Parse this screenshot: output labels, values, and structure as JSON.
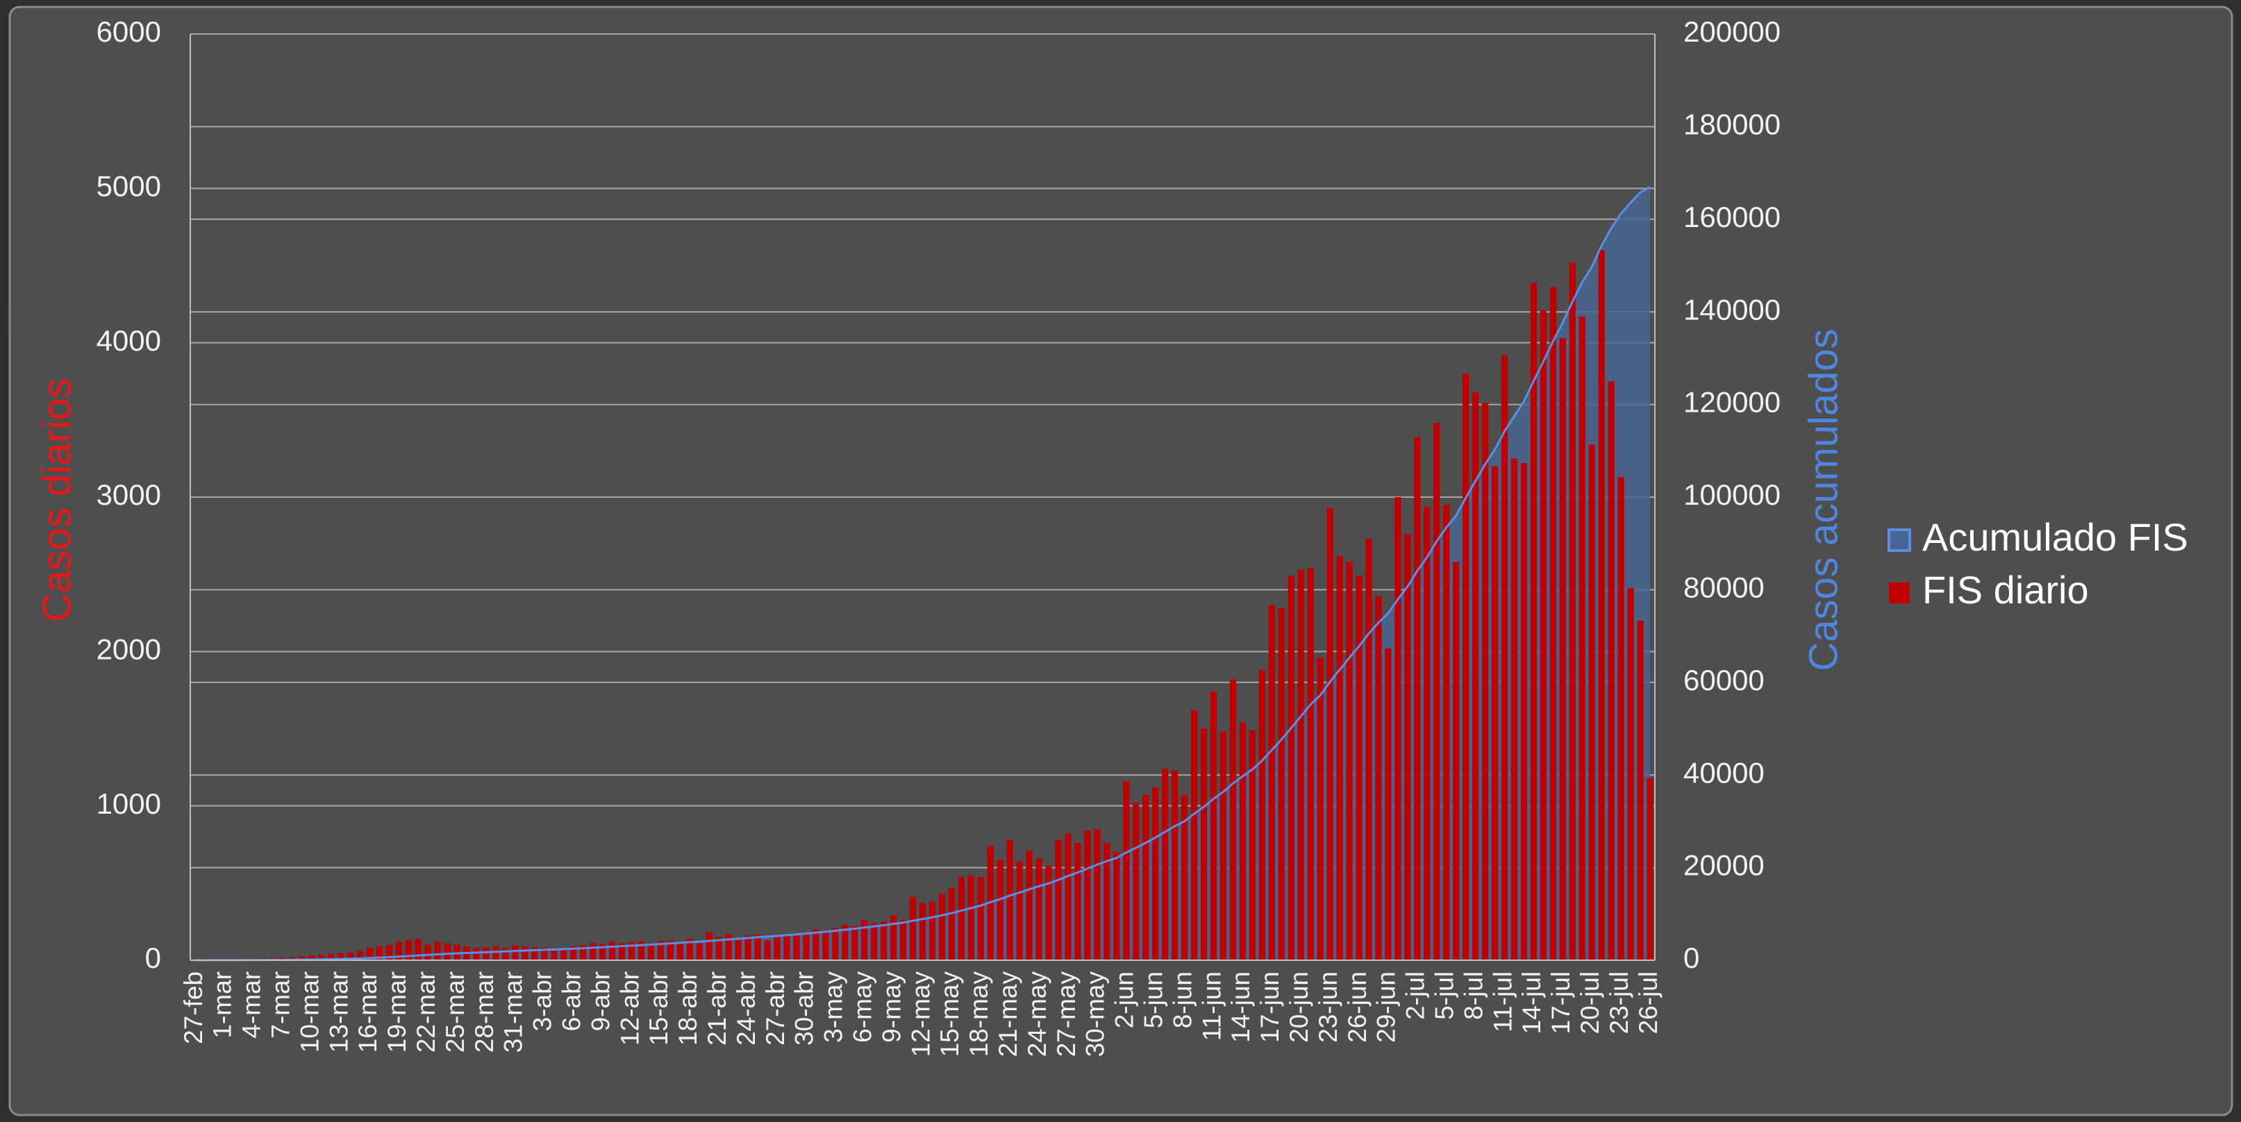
{
  "chart_data": {
    "type": "bar",
    "y_label": "Casos diarios",
    "y2_label": "Casos acumulados",
    "categories": [
      "27-feb",
      null,
      null,
      "1-mar",
      null,
      null,
      "4-mar",
      null,
      null,
      "7-mar",
      null,
      null,
      "10-mar",
      null,
      null,
      "13-mar",
      null,
      null,
      "16-mar",
      null,
      null,
      "19-mar",
      null,
      null,
      "22-mar",
      null,
      null,
      "25-mar",
      null,
      null,
      "28-mar",
      null,
      null,
      "31-mar",
      null,
      null,
      "3-abr",
      null,
      null,
      "6-abr",
      null,
      null,
      "9-abr",
      null,
      null,
      "12-abr",
      null,
      null,
      "15-abr",
      null,
      null,
      "18-abr",
      null,
      null,
      "21-abr",
      null,
      null,
      "24-abr",
      null,
      null,
      "27-abr",
      null,
      null,
      "30-abr",
      null,
      null,
      "3-may",
      null,
      null,
      "6-may",
      null,
      null,
      "9-may",
      null,
      null,
      "12-may",
      null,
      null,
      "15-may",
      null,
      null,
      "18-may",
      null,
      null,
      "21-may",
      null,
      null,
      "24-may",
      null,
      null,
      "27-may",
      null,
      null,
      "30-may",
      null,
      null,
      "2-jun",
      null,
      null,
      "5-jun",
      null,
      null,
      "8-jun",
      null,
      null,
      "11-jun",
      null,
      null,
      "14-jun",
      null,
      null,
      "17-jun",
      null,
      null,
      "20-jun",
      null,
      null,
      "23-jun",
      null,
      null,
      "26-jun",
      null,
      null,
      "29-jun",
      null,
      null,
      "2-jul",
      null,
      null,
      "5-jul",
      null,
      null,
      "8-jul",
      null,
      null,
      "11-jul",
      null,
      null,
      "14-jul",
      null,
      null,
      "17-jul",
      null,
      null,
      "20-jul",
      null,
      null,
      "23-jul",
      null,
      null,
      "26-jul"
    ],
    "series": [
      {
        "name": "Acumulado FIS",
        "type": "area",
        "axis": "y2",
        "color": "#5b8ee6",
        "fill": "#4a6591",
        "values": [
          2,
          5,
          10,
          15,
          21,
          29,
          39,
          51,
          66,
          84,
          104,
          129,
          159,
          194,
          234,
          279,
          329,
          389,
          469,
          559,
          659,
          779,
          909,
          1049,
          1149,
          1269,
          1379,
          1479,
          1569,
          1649,
          1734,
          1824,
          1904,
          1999,
          2089,
          2174,
          2254,
          2324,
          2399,
          2489,
          2589,
          2699,
          2804,
          2924,
          3034,
          3149,
          3269,
          3379,
          3504,
          3634,
          3754,
          3894,
          4004,
          4184,
          4334,
          4504,
          4644,
          4804,
          4969,
          5099,
          5249,
          5409,
          5579,
          5759,
          5959,
          6149,
          6359,
          6589,
          6809,
          7069,
          7309,
          7559,
          7849,
          8109,
          8519,
          8889,
          9269,
          9699,
          10169,
          10709,
          11259,
          11799,
          12539,
          13189,
          13969,
          14609,
          15319,
          15979,
          16589,
          17369,
          18189,
          18949,
          19789,
          20639,
          21399,
          22099,
          23259,
          24279,
          25349,
          26469,
          27709,
          28939,
          30009,
          31629,
          33129,
          34869,
          36349,
          38169,
          39709,
          41199,
          43079,
          45379,
          47659,
          50149,
          52679,
          55219,
          57179,
          60109,
          62729,
          65309,
          67799,
          70529,
          72889,
          74909,
          77909,
          80669,
          84059,
          86999,
          90479,
          93429,
          96009,
          99809,
          103489,
          107099,
          110299,
          114219,
          117469,
          120689,
          125079,
          129289,
          133649,
          137679,
          142199,
          146369,
          149709,
          154309,
          158059,
          161189,
          163599,
          165799,
          166979
        ]
      },
      {
        "name": "FIS diario",
        "type": "bar",
        "color": "#c00000",
        "values": [
          2,
          3,
          5,
          5,
          6,
          8,
          10,
          12,
          15,
          18,
          20,
          25,
          30,
          35,
          40,
          45,
          50,
          60,
          80,
          90,
          100,
          120,
          130,
          140,
          100,
          120,
          110,
          100,
          90,
          80,
          85,
          90,
          80,
          95,
          90,
          85,
          80,
          70,
          75,
          90,
          100,
          110,
          105,
          120,
          110,
          115,
          120,
          110,
          125,
          130,
          120,
          140,
          110,
          180,
          150,
          170,
          140,
          160,
          165,
          130,
          150,
          160,
          170,
          180,
          200,
          190,
          210,
          230,
          220,
          260,
          240,
          250,
          290,
          260,
          410,
          370,
          380,
          430,
          470,
          540,
          550,
          540,
          740,
          650,
          780,
          640,
          710,
          660,
          610,
          780,
          820,
          760,
          840,
          850,
          760,
          700,
          1160,
          1020,
          1070,
          1120,
          1240,
          1230,
          1070,
          1620,
          1500,
          1740,
          1480,
          1820,
          1540,
          1490,
          1880,
          2300,
          2280,
          2490,
          2530,
          2540,
          1960,
          2930,
          2620,
          2580,
          2490,
          2730,
          2360,
          2020,
          3000,
          2760,
          3390,
          2940,
          3480,
          2950,
          2580,
          3800,
          3680,
          3610,
          3200,
          3920,
          3250,
          3220,
          4390,
          4210,
          4360,
          4030,
          4520,
          4170,
          3340,
          4600,
          3750,
          3130,
          2410,
          2200,
          1180
        ]
      }
    ],
    "ylim": [
      0,
      6000
    ],
    "yticks": [
      0,
      1000,
      2000,
      3000,
      4000,
      5000,
      6000
    ],
    "y2lim": [
      0,
      200000
    ],
    "y2ticks": [
      0,
      20000,
      40000,
      60000,
      80000,
      100000,
      120000,
      140000,
      160000,
      180000,
      200000
    ],
    "grid": true,
    "legend": "right"
  }
}
